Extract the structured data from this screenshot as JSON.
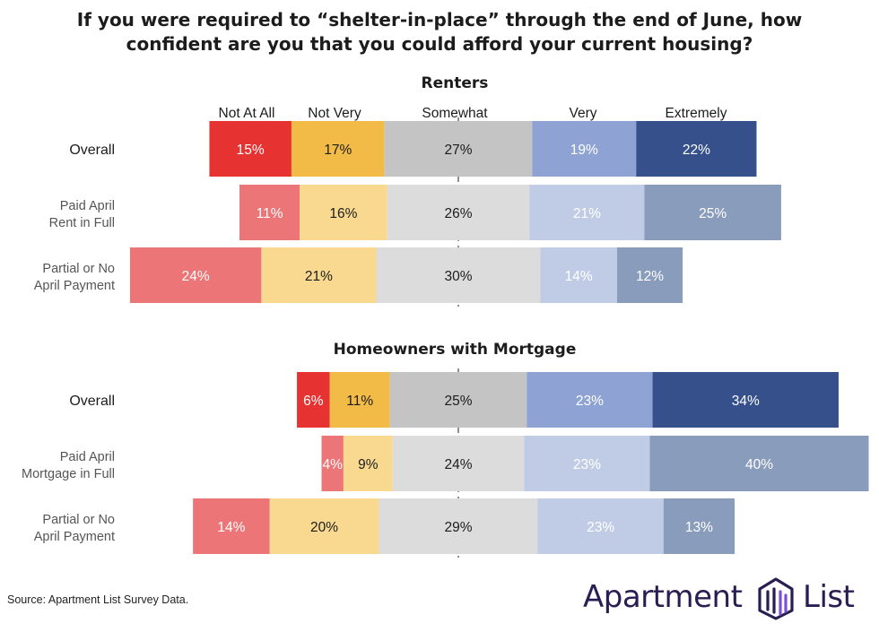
{
  "title_line1": "If you were required to “shelter-in-place” through the end of June, how",
  "title_line2": "confident are you that you could afford your current housing?",
  "source": "Source: Apartment List Survey Data.",
  "logo": {
    "word1": "Apartment",
    "word2": "List"
  },
  "colors": {
    "strong": [
      "#e63331",
      "#f2bb47",
      "#c4c4c4",
      "#8ea3d3",
      "#36508c"
    ],
    "light": [
      "#ec7577",
      "#f8d98f",
      "#dcdcdc",
      "#c0cce6",
      "#8a9cbc"
    ],
    "logo_purple": "#7b4fd6",
    "logo_dark": "#2a1d52"
  },
  "chart_data": [
    {
      "type": "bar",
      "subtype": "diverging-stacked",
      "title": "Renters",
      "categories": [
        "Not At All",
        "Not Very",
        "Somewhat",
        "Very",
        "Extremely"
      ],
      "rows": [
        {
          "label": [
            "Overall"
          ],
          "values": [
            15,
            17,
            27,
            19,
            22
          ],
          "palette": "strong"
        },
        {
          "label": [
            "Paid April",
            "Rent in Full"
          ],
          "values": [
            11,
            16,
            26,
            21,
            25
          ],
          "palette": "light"
        },
        {
          "label": [
            "Partial or No",
            "April Payment"
          ],
          "values": [
            24,
            21,
            30,
            14,
            12
          ],
          "palette": "light"
        }
      ]
    },
    {
      "type": "bar",
      "subtype": "diverging-stacked",
      "title": "Homeowners with Mortgage",
      "categories": [
        "Not At All",
        "Not Very",
        "Somewhat",
        "Very",
        "Extremely"
      ],
      "rows": [
        {
          "label": [
            "Overall"
          ],
          "values": [
            6,
            11,
            25,
            23,
            34
          ],
          "palette": "strong"
        },
        {
          "label": [
            "Paid April",
            "Mortgage in Full"
          ],
          "values": [
            4,
            9,
            24,
            23,
            40
          ],
          "palette": "light"
        },
        {
          "label": [
            "Partial or No",
            "April Payment"
          ],
          "values": [
            14,
            20,
            29,
            23,
            13
          ],
          "palette": "light"
        }
      ]
    }
  ]
}
